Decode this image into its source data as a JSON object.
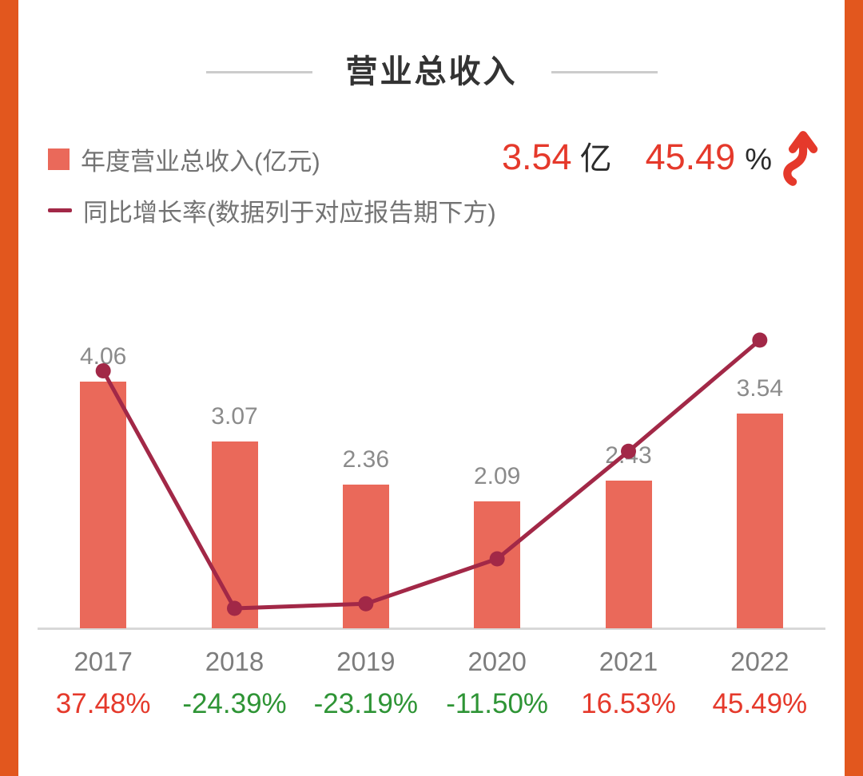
{
  "header": {
    "title": "营业总收入"
  },
  "legend": {
    "revenue": {
      "label": "年度营业总收入(亿元)"
    },
    "growth": {
      "label": "同比增长率(数据列于对应报告期下方)"
    }
  },
  "stat": {
    "value": "3.54",
    "unit": "亿",
    "growth_value": "45.49",
    "growth_unit": "%",
    "direction": "up"
  },
  "chart_data": {
    "type": "bar",
    "title": "营业总收入",
    "categories": [
      "2017",
      "2018",
      "2019",
      "2020",
      "2021",
      "2022"
    ],
    "series": [
      {
        "name": "年度营业总收入(亿元)",
        "type": "bar",
        "values": [
          4.06,
          3.07,
          2.36,
          2.09,
          2.43,
          3.54
        ],
        "color": "#ea695a"
      },
      {
        "name": "同比增长率(%)",
        "type": "line",
        "values": [
          37.48,
          -24.39,
          -23.19,
          -11.5,
          16.53,
          45.49
        ],
        "color": "#a22847"
      }
    ],
    "bar_value_labels": [
      "4.06",
      "3.07",
      "2.36",
      "2.09",
      "2.43",
      "3.54"
    ],
    "growth_labels": [
      "37.48%",
      "-24.39%",
      "-23.19%",
      "-11.50%",
      "16.53%",
      "45.49%"
    ],
    "xlabel": "",
    "ylabel": "亿元",
    "bar_ylim": [
      0,
      4.5
    ],
    "line_ylim": [
      -30,
      50
    ],
    "grid": false,
    "legend_position": "top-left"
  },
  "colors": {
    "accent_border": "#e2571e",
    "bar": "#ea695a",
    "line": "#a22847",
    "positive": "#e5392b",
    "negative": "#2e9435",
    "axis": "#d8d8d8",
    "arrow": "#e5392b"
  }
}
